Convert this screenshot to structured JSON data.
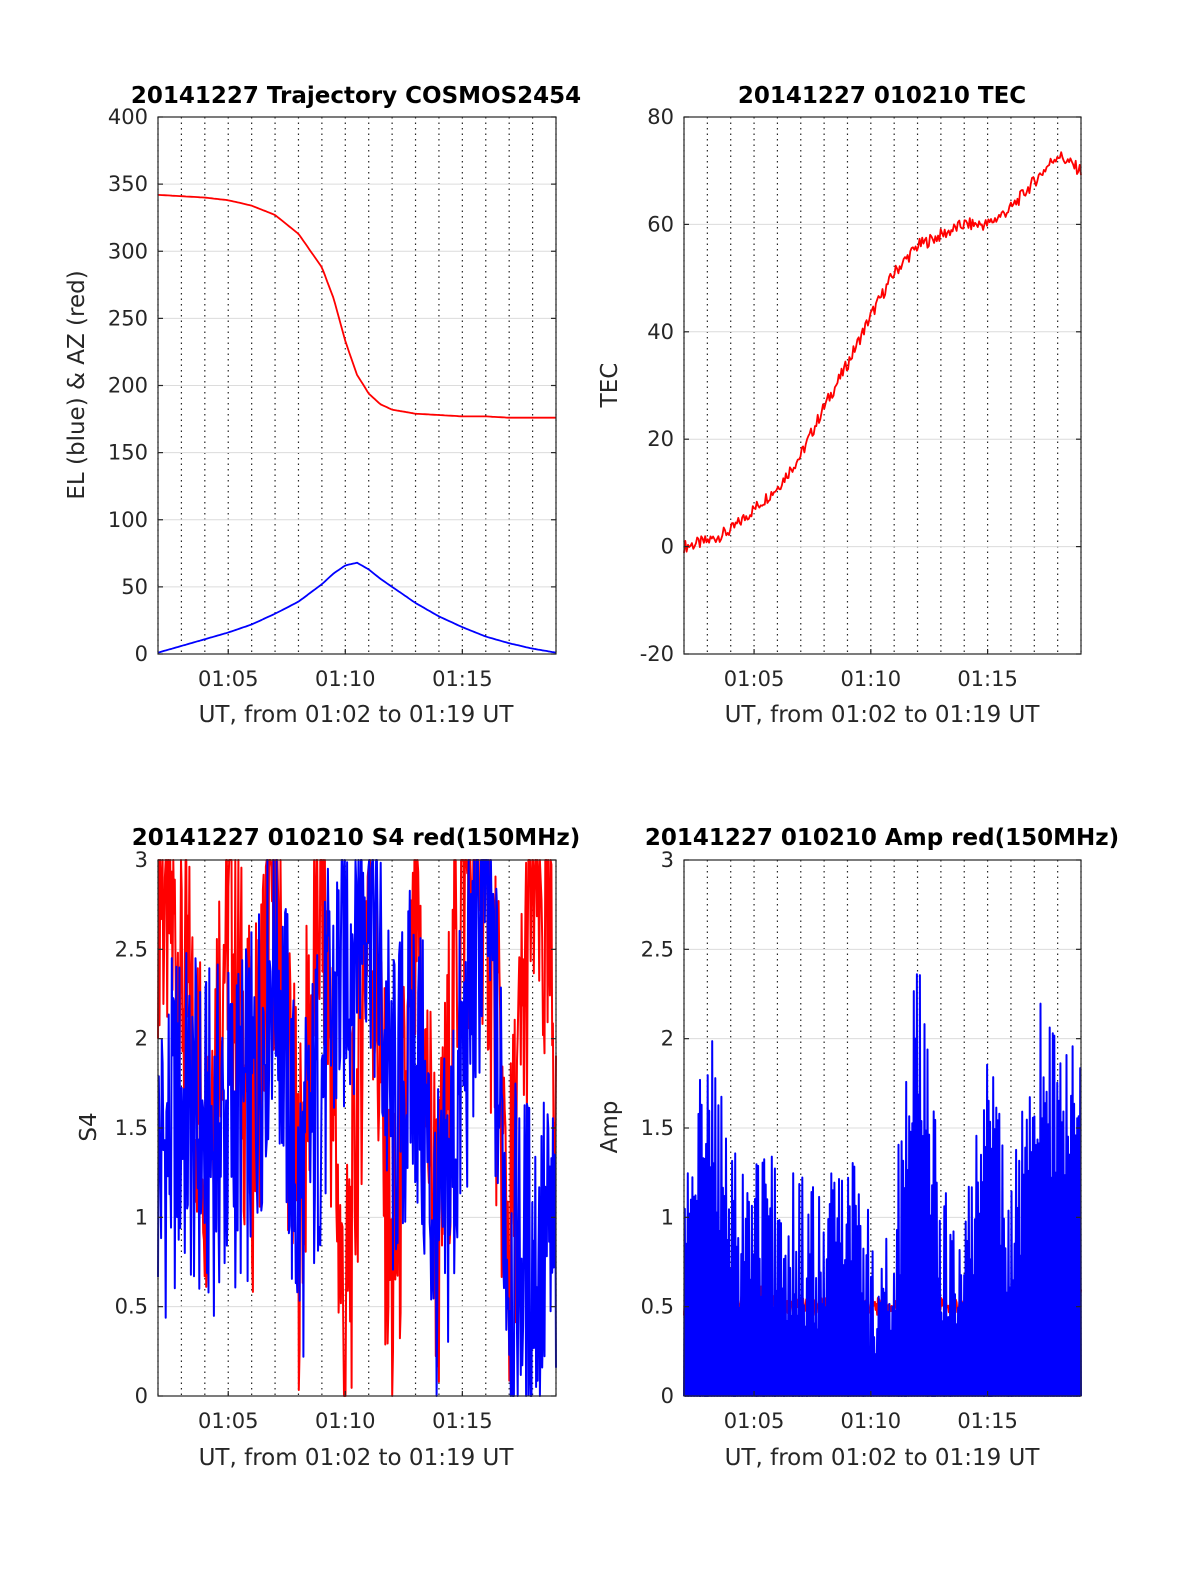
{
  "chart_data": [
    {
      "type": "line",
      "title": "20141227 Trajectory COSMOS2454",
      "xlabel": "UT, from 01:02 to 01:19 UT",
      "ylabel": "EL (blue) & AZ (red)",
      "xlim": [
        "01:02",
        "01:19"
      ],
      "ylim": [
        0,
        400
      ],
      "xticks": [
        "01:05",
        "01:10",
        "01:15"
      ],
      "yticks": [
        0,
        50,
        100,
        150,
        200,
        250,
        300,
        350,
        400
      ],
      "grid": "on",
      "x": [
        "01:02",
        "01:03",
        "01:04",
        "01:05",
        "01:06",
        "01:07",
        "01:08",
        "01:09",
        "01:09:30",
        "01:10",
        "01:10:30",
        "01:11",
        "01:11:30",
        "01:12",
        "01:13",
        "01:14",
        "01:15",
        "01:16",
        "01:17",
        "01:18",
        "01:19"
      ],
      "series": [
        {
          "color": "#ff0000",
          "values": [
            342,
            341,
            340,
            338,
            334,
            327,
            313,
            288,
            265,
            233,
            208,
            194,
            186,
            182,
            179,
            178,
            177,
            177,
            176,
            176,
            176
          ]
        },
        {
          "color": "#0000ff",
          "values": [
            1,
            6,
            11,
            16,
            22,
            30,
            39,
            52,
            60,
            66,
            68,
            63,
            56,
            50,
            38,
            28,
            20,
            13,
            8,
            4,
            1
          ]
        }
      ]
    },
    {
      "type": "line",
      "title": "20141227 010210 TEC",
      "xlabel": "UT, from 01:02 to 01:19 UT",
      "ylabel": "TEC",
      "xlim": [
        "01:02",
        "01:19"
      ],
      "ylim": [
        -20,
        80
      ],
      "xticks": [
        "01:05",
        "01:10",
        "01:15"
      ],
      "yticks": [
        -20,
        0,
        20,
        40,
        60,
        80
      ],
      "grid": "on",
      "x": [
        "01:02",
        "01:03",
        "01:04",
        "01:05",
        "01:06",
        "01:07",
        "01:08",
        "01:09",
        "01:10",
        "01:11",
        "01:12",
        "01:13",
        "01:14",
        "01:15",
        "01:16",
        "01:17",
        "01:18",
        "01:19"
      ],
      "series": [
        {
          "color": "#ff0000",
          "values": [
            0,
            1,
            3,
            7,
            11,
            17,
            26,
            34,
            43,
            51,
            56,
            58,
            60,
            60,
            63,
            68,
            73,
            70
          ]
        }
      ]
    },
    {
      "type": "line",
      "title": "20141227 010210 S4 red(150MHz)",
      "xlabel": "UT, from 01:02 to 01:19 UT",
      "ylabel": "S4",
      "xlim": [
        "01:02",
        "01:19"
      ],
      "ylim": [
        0,
        3
      ],
      "xticks": [
        "01:05",
        "01:10",
        "01:15"
      ],
      "yticks": [
        0,
        0.5,
        1,
        1.5,
        2,
        2.5,
        3
      ],
      "grid": "on",
      "x": [
        "01:02",
        "01:03",
        "01:04",
        "01:05",
        "01:06",
        "01:07",
        "01:08",
        "01:09",
        "01:10",
        "01:11",
        "01:12",
        "01:13",
        "01:14",
        "01:15",
        "01:16",
        "01:17",
        "01:18",
        "01:19"
      ],
      "series": [
        {
          "color": "#ff0000",
          "values": [
            3,
            2.4,
            1.5,
            2.8,
            1.5,
            3,
            1.0,
            3,
            0.2,
            3,
            0.5,
            2.4,
            0.8,
            3,
            3,
            0.8,
            3,
            2.0
          ]
        },
        {
          "color": "#0000ff",
          "values": [
            1.3,
            1.6,
            1.4,
            1.5,
            1.6,
            2.6,
            1.0,
            1.8,
            2.5,
            3,
            1.5,
            2.0,
            0.7,
            1.8,
            3,
            0.75,
            0.75,
            0.8
          ]
        }
      ]
    },
    {
      "type": "line",
      "title": "20141227 010210 Amp red(150MHz)",
      "xlabel": "UT, from 01:02 to 01:19 UT",
      "ylabel": "Amp",
      "xlim": [
        "01:02",
        "01:19"
      ],
      "ylim": [
        0,
        3
      ],
      "xticks": [
        "01:05",
        "01:10",
        "01:15"
      ],
      "yticks": [
        0,
        0.5,
        1,
        1.5,
        2,
        2.5,
        3
      ],
      "grid": "on",
      "x": [
        "01:02",
        "01:03",
        "01:04",
        "01:05",
        "01:06",
        "01:07",
        "01:08",
        "01:09",
        "01:10",
        "01:11",
        "01:12",
        "01:13",
        "01:14",
        "01:15",
        "01:16",
        "01:17",
        "01:18",
        "01:19"
      ],
      "series": [
        {
          "color": "#ff0000",
          "values": [
            0.5,
            0.6,
            0.5,
            0.6,
            0.5,
            0.5,
            0.5,
            0.6,
            0.5,
            0.5,
            0.5,
            0.5,
            0.5,
            0.5,
            0.5,
            0.6,
            0.6,
            0.6
          ]
        },
        {
          "color": "#0000ff",
          "values": [
            0.8,
            1.75,
            0.9,
            1.0,
            0.9,
            0.8,
            0.7,
            1.2,
            0.6,
            0.7,
            2.1,
            0.8,
            0.6,
            1.75,
            0.7,
            1.8,
            1.6,
            1.6
          ]
        }
      ]
    }
  ]
}
